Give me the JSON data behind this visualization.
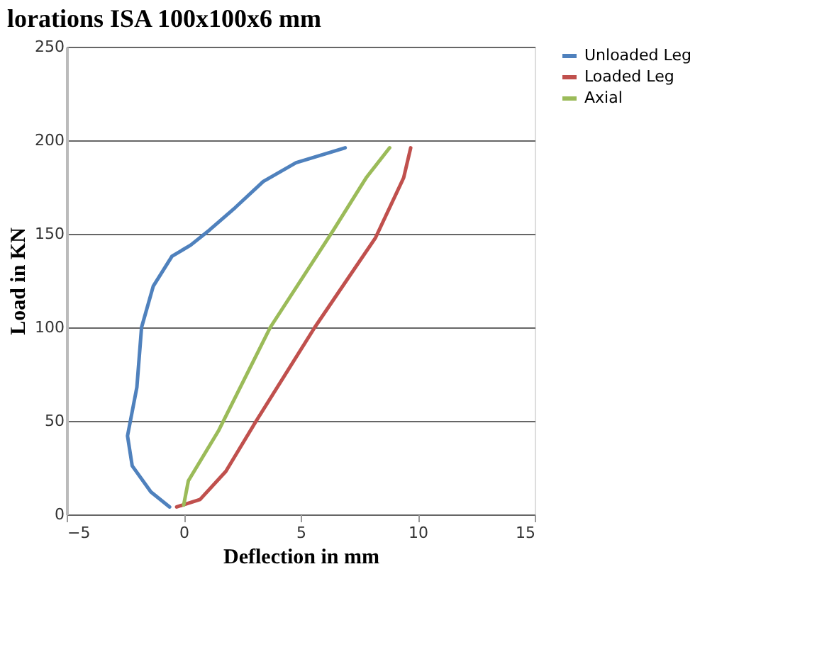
{
  "chart_data": {
    "type": "line",
    "title": "lorations ISA 100x100x6 mm",
    "xlabel": "Deflection in mm",
    "ylabel": "Load in KN",
    "xlim": [
      -5,
      15
    ],
    "xticks": [
      -5,
      0,
      5,
      10,
      15
    ],
    "ylim": [
      0,
      250
    ],
    "yticks": [
      0,
      50,
      100,
      150,
      200,
      250
    ],
    "grid": "y",
    "legend": "right",
    "marker": "none",
    "line_style": "solid",
    "series": [
      {
        "name": "Unloaded Leg",
        "color": "#4f81bd",
        "x": [
          -0.6,
          -1.4,
          -2.2,
          -2.4,
          -2.0,
          -1.8,
          -1.3,
          -0.5,
          0.3,
          1.1,
          2.2,
          3.4,
          4.8,
          6.9
        ],
        "values": [
          4,
          12,
          26,
          42,
          68,
          100,
          122,
          138,
          144,
          152,
          164,
          178,
          188,
          196
        ]
      },
      {
        "name": "Loaded Leg",
        "color": "#c0504d",
        "x": [
          -0.3,
          0.7,
          1.8,
          3.1,
          5.6,
          8.2,
          9.4,
          9.7
        ],
        "values": [
          4,
          8,
          23,
          50,
          100,
          148,
          180,
          196
        ]
      },
      {
        "name": "Axial",
        "color": "#9bbb59",
        "x": [
          0,
          0.2,
          1.5,
          3.7,
          6.4,
          7.8,
          8.8
        ],
        "values": [
          5,
          18,
          45,
          100,
          152,
          180,
          196
        ]
      }
    ]
  }
}
